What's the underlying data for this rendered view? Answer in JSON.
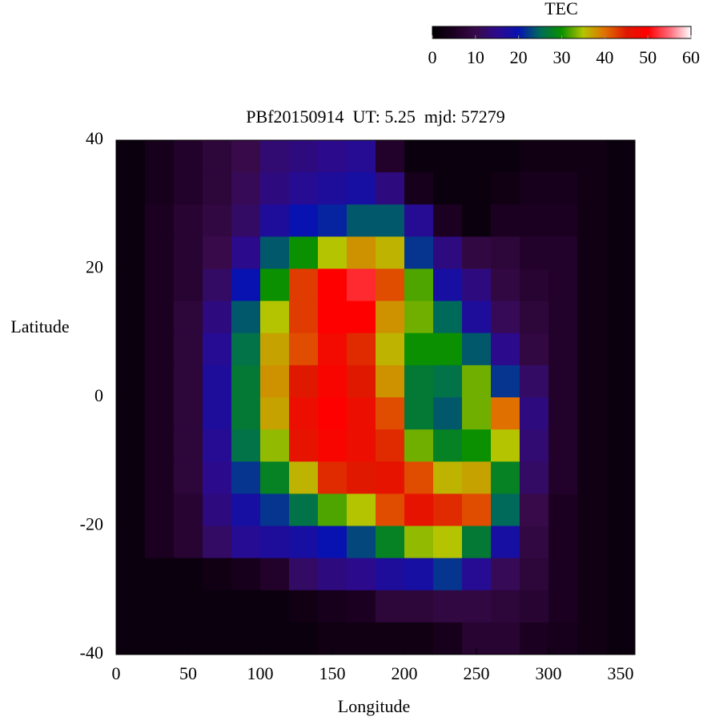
{
  "chart_data": {
    "type": "heatmap",
    "title": "PBf20150914  UT: 5.25  mjd: 57279",
    "x_label": "Longitude",
    "y_label": "Latitude",
    "colorbar_label": "TEC",
    "x": [
      10,
      30,
      50,
      70,
      90,
      110,
      130,
      150,
      170,
      190,
      210,
      230,
      250,
      270,
      290,
      310,
      330,
      350
    ],
    "y": [
      37.5,
      32.5,
      27.5,
      22.5,
      17.5,
      12.5,
      7.5,
      2.5,
      -2.5,
      -7.5,
      -12.5,
      -17.5,
      -22.5,
      -27.5,
      -32.5,
      -37.5
    ],
    "z": [
      [
        2,
        4,
        6,
        8,
        10,
        13,
        14,
        15,
        16,
        6,
        2,
        2,
        2,
        2,
        3,
        3,
        3,
        2
      ],
      [
        2,
        4,
        6,
        8,
        11,
        14,
        16,
        17,
        18,
        14,
        4,
        2,
        2,
        3,
        4,
        4,
        3,
        2
      ],
      [
        2,
        5,
        7,
        9,
        12,
        17,
        20,
        21,
        24,
        24,
        16,
        5,
        2,
        5,
        5,
        5,
        3,
        2
      ],
      [
        2,
        5,
        7,
        10,
        15,
        24,
        30,
        35,
        38,
        36,
        22,
        14,
        9,
        8,
        6,
        6,
        3,
        2
      ],
      [
        2,
        5,
        7,
        12,
        20,
        30,
        43,
        50,
        52,
        42,
        32,
        18,
        14,
        9,
        7,
        6,
        3,
        2
      ],
      [
        2,
        5,
        8,
        14,
        24,
        35,
        43,
        50,
        50,
        38,
        33,
        25,
        17,
        11,
        8,
        6,
        3,
        2
      ],
      [
        2,
        5,
        8,
        16,
        26,
        37,
        42,
        48,
        44,
        36,
        30,
        30,
        24,
        15,
        9,
        6,
        3,
        2
      ],
      [
        2,
        5,
        8,
        17,
        27,
        38,
        45,
        49,
        45,
        38,
        27,
        26,
        33,
        22,
        12,
        6,
        3,
        2
      ],
      [
        2,
        5,
        8,
        17,
        27,
        37,
        47,
        50,
        47,
        42,
        27,
        24,
        33,
        40,
        14,
        6,
        3,
        2
      ],
      [
        2,
        5,
        8,
        16,
        26,
        34,
        46,
        49,
        47,
        44,
        33,
        28,
        30,
        35,
        13,
        6,
        3,
        2
      ],
      [
        2,
        5,
        8,
        15,
        22,
        28,
        36,
        44,
        45,
        46,
        42,
        36,
        37,
        28,
        12,
        6,
        3,
        2
      ],
      [
        2,
        5,
        7,
        14,
        18,
        22,
        26,
        32,
        35,
        42,
        46,
        44,
        42,
        25,
        10,
        5,
        3,
        2
      ],
      [
        2,
        5,
        7,
        12,
        16,
        17,
        18,
        20,
        23,
        28,
        34,
        35,
        27,
        18,
        9,
        5,
        3,
        2
      ],
      [
        2,
        2,
        2,
        3,
        4,
        6,
        12,
        14,
        15,
        17,
        18,
        22,
        16,
        11,
        8,
        5,
        3,
        2
      ],
      [
        2,
        2,
        2,
        2,
        2,
        2,
        3,
        4,
        5,
        8,
        8,
        9,
        9,
        8,
        7,
        5,
        3,
        2
      ],
      [
        2,
        2,
        2,
        2,
        2,
        2,
        2,
        3,
        3,
        3,
        3,
        4,
        7,
        7,
        5,
        4,
        3,
        2
      ]
    ],
    "xlim": [
      0,
      360
    ],
    "xticks": [
      0,
      50,
      100,
      150,
      200,
      250,
      300,
      350
    ],
    "ylim": [
      -40,
      40
    ],
    "yticks": [
      -40,
      -20,
      0,
      20,
      40
    ],
    "zlim": [
      0,
      60
    ],
    "zticks": [
      0,
      10,
      20,
      30,
      40,
      50,
      60
    ],
    "colormap": [
      "#000000",
      "#1c0022",
      "#380a4a",
      "#2c0a8c",
      "#0812b0",
      "#006a5a",
      "#0a9000",
      "#b4c400",
      "#e07000",
      "#e01800",
      "#ff0000",
      "#ff6a78",
      "#ffffff"
    ]
  }
}
